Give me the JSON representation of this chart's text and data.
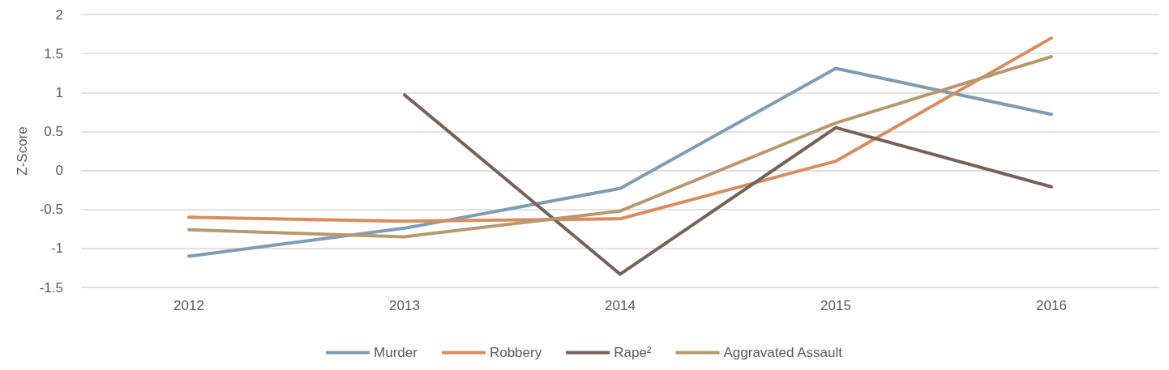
{
  "chart_data": {
    "type": "line",
    "ylabel": "Z-Score",
    "categories": [
      "2012",
      "2013",
      "2014",
      "2015",
      "2016"
    ],
    "series": [
      {
        "name": "Murder",
        "color": "#7f9cb4",
        "values": [
          -1.1,
          -0.74,
          -0.23,
          1.31,
          0.72
        ]
      },
      {
        "name": "Robbery",
        "color": "#d98c5f",
        "values": [
          -0.6,
          -0.65,
          -0.62,
          0.12,
          1.7
        ]
      },
      {
        "name": "Rape²",
        "color": "#75635a",
        "values": [
          null,
          0.97,
          -1.33,
          0.55,
          -0.21
        ]
      },
      {
        "name": "Aggravated Assault",
        "color": "#b8986e",
        "values": [
          -0.76,
          -0.85,
          -0.52,
          0.61,
          1.46
        ]
      }
    ],
    "ylim": [
      -1.5,
      2
    ],
    "yticks": [
      -1.5,
      -1,
      -0.5,
      0,
      0.5,
      1,
      1.5,
      2
    ],
    "grid": "y",
    "legend": "bottom",
    "marker": "none",
    "line_style": "solid"
  }
}
